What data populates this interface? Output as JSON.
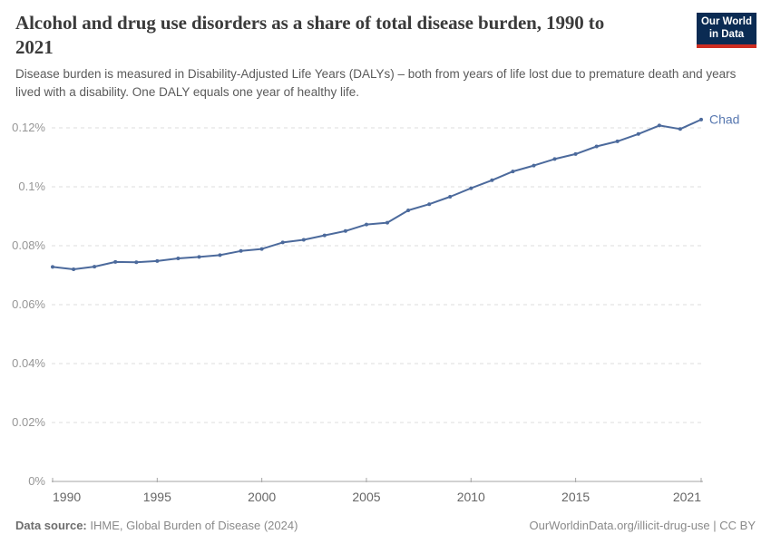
{
  "header": {
    "title": "Alcohol and drug use disorders as a share of total disease burden, 1990 to 2021",
    "subtitle": "Disease burden is measured in Disability-Adjusted Life Years (DALYs) – both from years of life lost due to premature death and years lived with a disability. One DALY equals one year of healthy life.",
    "logo": {
      "line1": "Our World",
      "line2": "in Data",
      "bg_color": "#0b2b53",
      "accent_color": "#cd2c21"
    }
  },
  "chart_data": {
    "type": "line",
    "title": "Alcohol and drug use disorders as a share of total disease burden, 1990 to 2021",
    "xlabel": "",
    "ylabel": "",
    "unit": "%",
    "xlim": [
      1990,
      2021
    ],
    "ylim": [
      0,
      0.124
    ],
    "grid": "horizontal-dashed",
    "legend_position": "end-of-line-label",
    "x_ticks": [
      1990,
      1995,
      2000,
      2005,
      2010,
      2015,
      2021
    ],
    "y_ticks": [
      0,
      0.02,
      0.04,
      0.06,
      0.08,
      0.1,
      0.12
    ],
    "y_tick_labels": [
      "0%",
      "0.02%",
      "0.04%",
      "0.06%",
      "0.08%",
      "0.1%",
      "0.12%"
    ],
    "x": [
      1990,
      1991,
      1992,
      1993,
      1994,
      1995,
      1996,
      1997,
      1998,
      1999,
      2000,
      2001,
      2002,
      2003,
      2004,
      2005,
      2006,
      2007,
      2008,
      2009,
      2010,
      2011,
      2012,
      2013,
      2014,
      2015,
      2016,
      2017,
      2018,
      2019,
      2020,
      2021
    ],
    "series": [
      {
        "name": "Chad",
        "color": "#4c6a9c",
        "label_color": "#5878b0",
        "values": [
          0.0728,
          0.072,
          0.0729,
          0.0745,
          0.0744,
          0.0748,
          0.0757,
          0.0762,
          0.0768,
          0.0782,
          0.0789,
          0.0811,
          0.082,
          0.0835,
          0.085,
          0.0872,
          0.0878,
          0.092,
          0.0941,
          0.0966,
          0.0995,
          0.1022,
          0.1052,
          0.1072,
          0.1094,
          0.1111,
          0.1137,
          0.1154,
          0.1179,
          0.1208,
          0.1196,
          0.1228
        ]
      }
    ]
  },
  "footer": {
    "source_label": "Data source:",
    "source_text": " IHME, Global Burden of Disease (2024)",
    "credit": "OurWorldinData.org/illicit-drug-use | CC BY"
  }
}
